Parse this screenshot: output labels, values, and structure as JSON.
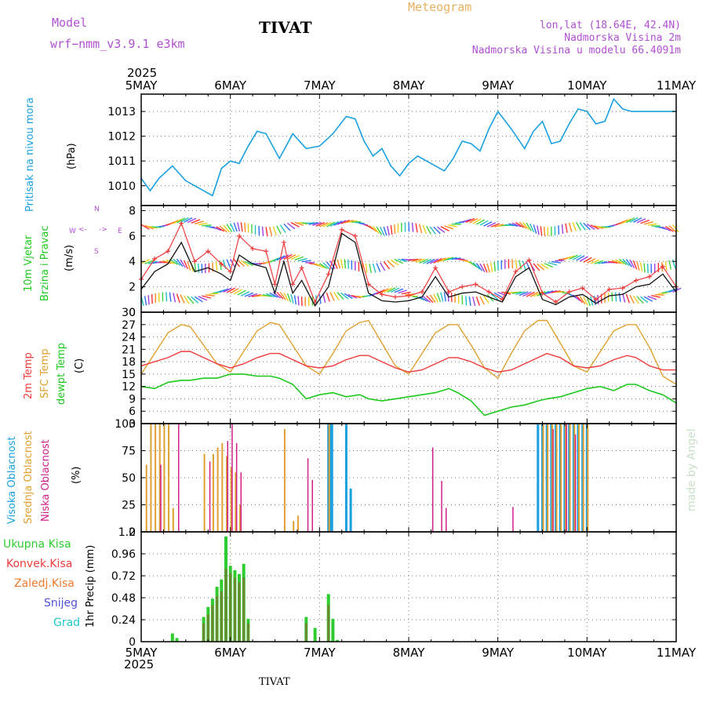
{
  "header": {
    "model_label": "Model",
    "model_value": "wrf−nmm_v3.9.1  e3km",
    "station": "TIVAT",
    "chart_kind": "Meteogram",
    "coords": "lon,lat (18.64E, 42.4N)",
    "altitude": "Nadmorska Visina 2m",
    "model_altitude": "Nadmorska Visina u modelu 66.4091m",
    "year_top": "2025",
    "year_bottom": "2025",
    "footer_station": "TIVAT",
    "credit": "made by Angel"
  },
  "colors": {
    "pressure": "#1aa0e0",
    "temp2m": "#ee3a3a",
    "sfc": "#e0a030",
    "dewpt": "#1ec81e",
    "high_cloud": "#1aa0e0",
    "mid_cloud": "#e0a030",
    "low_cloud": "#d0208a",
    "total_precip": "#2ecc2e",
    "conv_precip": "#ee3a3a",
    "freezing": "#f07a30",
    "snow": "#5050d8",
    "hail": "#20c8c8",
    "wind_speed": "#111111",
    "wind_gust": "#ee3a3a"
  },
  "chart_data": [
    {
      "id": "pressure",
      "type": "line",
      "ylabel": "Pritisak na nivou mora",
      "yunit": "(hPa)",
      "ylim": [
        1009.2,
        1013.7
      ],
      "yticks": [
        1010,
        1011,
        1012,
        1013
      ],
      "x_days": [
        "5MAY",
        "6MAY",
        "7MAY",
        "8MAY",
        "9MAY",
        "10MAY",
        "11MAY"
      ],
      "x": [
        0,
        0.1,
        0.2,
        0.35,
        0.5,
        0.65,
        0.8,
        0.9,
        1.0,
        1.1,
        1.2,
        1.3,
        1.4,
        1.55,
        1.7,
        1.85,
        2.0,
        2.15,
        2.3,
        2.4,
        2.5,
        2.6,
        2.7,
        2.8,
        2.9,
        3.0,
        3.1,
        3.25,
        3.4,
        3.5,
        3.6,
        3.7,
        3.8,
        3.9,
        4.0,
        4.15,
        4.3,
        4.4,
        4.5,
        4.6,
        4.7,
        4.8,
        4.9,
        5.0,
        5.1,
        5.2,
        5.3,
        5.4,
        5.5,
        5.6,
        5.7,
        5.8,
        5.9,
        6.0
      ],
      "values": [
        1010.3,
        1009.8,
        1010.3,
        1010.8,
        1010.2,
        1009.9,
        1009.6,
        1010.7,
        1011.0,
        1010.9,
        1011.6,
        1012.2,
        1012.1,
        1011.1,
        1012.1,
        1011.5,
        1011.6,
        1012.1,
        1012.8,
        1012.7,
        1011.8,
        1011.2,
        1011.5,
        1010.8,
        1010.4,
        1010.9,
        1011.2,
        1010.9,
        1010.6,
        1011.1,
        1011.8,
        1011.7,
        1011.4,
        1012.3,
        1013.0,
        1012.3,
        1011.5,
        1012.2,
        1012.6,
        1011.7,
        1011.8,
        1012.5,
        1013.1,
        1013.0,
        1012.5,
        1012.6,
        1013.5,
        1013.1,
        1013.0,
        1013.0,
        1013.0,
        1013.0,
        1013.0,
        1013.0
      ]
    },
    {
      "id": "wind",
      "type": "line",
      "ylabel_1": "10m Vjetar",
      "ylabel_2": "Brzina i Pravac",
      "yunit": "(m/s)",
      "compass": {
        "n": "N",
        "w": "W",
        "e": "E",
        "s": "S"
      },
      "ylim": [
        0,
        8.4
      ],
      "yticks": [
        0,
        2,
        4,
        6,
        8
      ],
      "x": [
        0,
        0.15,
        0.3,
        0.45,
        0.6,
        0.75,
        0.9,
        1.0,
        1.1,
        1.25,
        1.4,
        1.5,
        1.6,
        1.7,
        1.8,
        1.95,
        2.1,
        2.25,
        2.4,
        2.55,
        2.7,
        2.85,
        3.0,
        3.15,
        3.3,
        3.45,
        3.6,
        3.75,
        3.9,
        4.05,
        4.2,
        4.35,
        4.5,
        4.65,
        4.8,
        4.95,
        5.1,
        5.25,
        5.4,
        5.55,
        5.7,
        5.85,
        6.0
      ],
      "series": [
        {
          "name": "speed",
          "values": [
            1.8,
            3.2,
            3.8,
            5.5,
            3.2,
            3.5,
            3.0,
            2.5,
            4.5,
            3.8,
            3.5,
            1.5,
            4.0,
            1.5,
            2.5,
            0.5,
            2.0,
            6.2,
            5.5,
            1.5,
            0.9,
            0.8,
            0.9,
            1.2,
            2.8,
            1.2,
            1.5,
            1.6,
            1.2,
            0.8,
            2.8,
            3.5,
            1.0,
            0.6,
            1.2,
            1.4,
            0.7,
            1.3,
            1.4,
            2.0,
            2.2,
            3.0,
            1.6
          ]
        },
        {
          "name": "gust",
          "values": [
            2.6,
            4.2,
            4.8,
            7.0,
            4.0,
            4.8,
            3.8,
            3.2,
            6.0,
            5.0,
            4.8,
            2.2,
            5.5,
            2.2,
            3.5,
            0.8,
            3.0,
            6.5,
            6.0,
            2.2,
            1.4,
            1.2,
            1.3,
            1.6,
            3.5,
            1.6,
            2.0,
            2.2,
            1.6,
            1.0,
            3.2,
            4.1,
            1.5,
            0.8,
            1.6,
            1.9,
            1.0,
            1.8,
            1.9,
            2.5,
            2.8,
            3.6,
            2.0
          ]
        }
      ]
    },
    {
      "id": "temperature",
      "type": "line",
      "ylabel_1": "2m Temp",
      "ylabel_2": "SFC Temp",
      "ylabel_3": "dewpt Temp",
      "yunit": "(C)",
      "ylim": [
        3,
        30
      ],
      "yticks": [
        3,
        6,
        9,
        12,
        15,
        18,
        21,
        24,
        27,
        30
      ],
      "x": [
        0,
        0.15,
        0.3,
        0.45,
        0.55,
        0.7,
        0.85,
        1.0,
        1.15,
        1.3,
        1.45,
        1.55,
        1.7,
        1.85,
        2.0,
        2.15,
        2.3,
        2.45,
        2.55,
        2.7,
        2.85,
        3.0,
        3.15,
        3.3,
        3.45,
        3.55,
        3.7,
        3.85,
        4.0,
        4.15,
        4.3,
        4.45,
        4.55,
        4.7,
        4.85,
        5.0,
        5.15,
        5.3,
        5.45,
        5.55,
        5.7,
        5.85,
        6.0
      ],
      "series": [
        {
          "name": "2m",
          "values": [
            17.0,
            18.0,
            19.0,
            20.5,
            20.5,
            19.0,
            17.5,
            16.5,
            17.5,
            19.0,
            20.0,
            20.0,
            18.5,
            17.0,
            16.5,
            17.0,
            18.5,
            19.5,
            19.5,
            18.0,
            16.5,
            15.5,
            16.0,
            17.5,
            19.0,
            19.0,
            18.0,
            16.5,
            15.5,
            16.0,
            17.5,
            19.0,
            20.0,
            19.0,
            17.0,
            16.5,
            17.0,
            18.5,
            19.5,
            19.0,
            17.0,
            16.0,
            16.0
          ]
        },
        {
          "name": "sfc",
          "values": [
            15.0,
            20.0,
            25.0,
            27.0,
            26.5,
            22.0,
            17.5,
            15.5,
            20.5,
            25.5,
            27.5,
            27.0,
            22.0,
            17.0,
            15.0,
            20.0,
            25.5,
            27.5,
            28.0,
            22.5,
            17.0,
            15.0,
            20.0,
            25.0,
            27.0,
            27.0,
            22.0,
            16.5,
            14.0,
            20.0,
            25.5,
            28.0,
            28.0,
            22.5,
            17.0,
            15.5,
            20.5,
            25.5,
            27.0,
            27.0,
            21.5,
            14.5,
            12.5
          ]
        },
        {
          "name": "dewpt",
          "values": [
            12.0,
            11.5,
            13.0,
            13.5,
            13.5,
            14.0,
            14.0,
            15.0,
            15.0,
            14.5,
            14.5,
            14.0,
            12.5,
            9.0,
            10.0,
            10.5,
            9.5,
            10.0,
            9.0,
            8.5,
            9.0,
            9.5,
            10.0,
            10.5,
            11.5,
            10.5,
            8.5,
            5.0,
            6.0,
            7.0,
            7.5,
            8.5,
            9.0,
            9.5,
            10.5,
            11.5,
            12.0,
            11.0,
            12.5,
            12.5,
            11.0,
            10.0,
            8.0
          ]
        }
      ]
    },
    {
      "id": "clouds",
      "type": "bar",
      "ylabel_1": "Visoka Oblacnost",
      "ylabel_2": "Srednja Oblacnost",
      "ylabel_3": "Niska Oblacnost",
      "yunit": "(%)",
      "ylim": [
        0,
        100
      ],
      "yticks": [
        0,
        25,
        50,
        75,
        100
      ],
      "high": {
        "x": [
          2.1,
          2.12,
          2.14,
          2.3,
          2.35,
          4.45,
          4.5,
          4.55,
          4.6,
          4.65,
          4.7,
          4.75,
          4.8,
          4.85,
          4.9,
          4.95,
          5.0
        ],
        "values": [
          100,
          100,
          100,
          100,
          40,
          100,
          100,
          100,
          100,
          100,
          100,
          100,
          100,
          100,
          100,
          100,
          100
        ]
      },
      "mid": {
        "x": [
          0.05,
          0.1,
          0.15,
          0.2,
          0.25,
          0.3,
          0.35,
          0.7,
          0.8,
          0.85,
          0.9,
          0.95,
          1.0,
          1.05,
          1.1,
          1.6,
          1.7,
          1.75,
          2.1,
          4.5,
          4.55,
          4.6,
          4.65,
          4.7,
          4.75,
          4.8,
          4.85,
          4.9,
          4.95,
          5.0
        ],
        "values": [
          62,
          100,
          100,
          100,
          100,
          100,
          22,
          72,
          72,
          78,
          82,
          70,
          60,
          55,
          25,
          95,
          10,
          15,
          100,
          100,
          100,
          100,
          100,
          100,
          100,
          100,
          100,
          100,
          100,
          100
        ]
      },
      "low": {
        "x": [
          0.2,
          0.4,
          0.75,
          0.95,
          1.0,
          1.05,
          1.1,
          1.85,
          1.9,
          3.25,
          3.35,
          3.4,
          4.15,
          4.6,
          4.75,
          4.85
        ],
        "values": [
          62,
          100,
          65,
          84,
          100,
          82,
          55,
          68,
          48,
          78,
          47,
          22,
          23,
          95,
          100,
          90
        ]
      }
    },
    {
      "id": "precip",
      "type": "bar",
      "ylabel": "1hr Precip (mm)",
      "ylim": [
        0,
        1.2
      ],
      "yticks": [
        0,
        0.24,
        0.48,
        0.72,
        0.96,
        1.2
      ],
      "ytick_labels": [
        "0",
        "0.24",
        "0.48",
        "0.72",
        "0.96",
        "1.2"
      ],
      "legend": [
        "Ukupna  Kisa",
        "Konvek.Kisa",
        "Zaledj.Kisa",
        "Snijeg",
        "Grad"
      ],
      "total": {
        "x": [
          0.35,
          0.4,
          0.7,
          0.75,
          0.8,
          0.85,
          0.9,
          0.95,
          1.0,
          1.05,
          1.1,
          1.15,
          1.2,
          1.85,
          1.95,
          2.1,
          2.15,
          2.2
        ],
        "values": [
          0.09,
          0.04,
          0.27,
          0.38,
          0.47,
          0.6,
          0.68,
          1.15,
          0.83,
          0.78,
          0.74,
          0.85,
          0.25,
          0.27,
          0.15,
          0.52,
          0.25,
          0.02
        ]
      },
      "convective": {
        "x": [
          0.7,
          0.75,
          0.8,
          0.85,
          0.9,
          0.95,
          1.0,
          1.05,
          1.1,
          1.15,
          1.2,
          1.85,
          2.1
        ],
        "values": [
          0.2,
          0.3,
          0.4,
          0.5,
          0.55,
          0.8,
          0.75,
          0.7,
          0.65,
          0.7,
          0.2,
          0.2,
          0.4
        ]
      }
    }
  ]
}
